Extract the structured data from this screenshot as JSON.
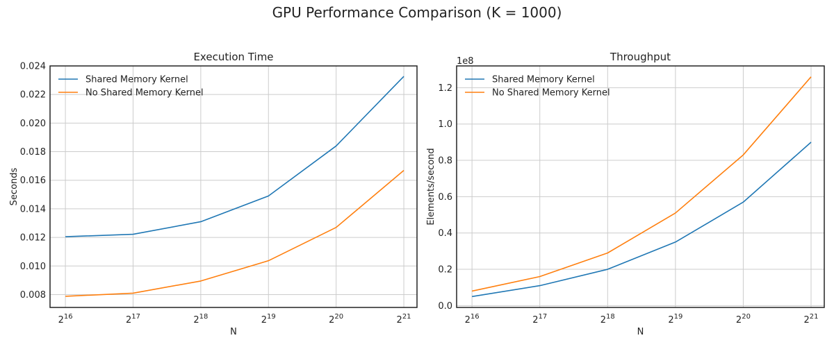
{
  "figure": {
    "title": "GPU Performance Comparison (K = 1000)"
  },
  "chart_data": [
    {
      "type": "line",
      "title": "Execution Time",
      "xlabel": "N",
      "ylabel": "Seconds",
      "x_scale": "log2",
      "x_ticks": [
        65536,
        131072,
        262144,
        524288,
        1048576,
        2097152
      ],
      "x_tick_labels": [
        {
          "base": "2",
          "exp": "16"
        },
        {
          "base": "2",
          "exp": "17"
        },
        {
          "base": "2",
          "exp": "18"
        },
        {
          "base": "2",
          "exp": "19"
        },
        {
          "base": "2",
          "exp": "20"
        },
        {
          "base": "2",
          "exp": "21"
        }
      ],
      "y_ticks": [
        0.008,
        0.01,
        0.012,
        0.014,
        0.016,
        0.018,
        0.02,
        0.022,
        0.024
      ],
      "y_tick_labels": [
        "0.008",
        "0.010",
        "0.012",
        "0.014",
        "0.016",
        "0.018",
        "0.020",
        "0.022",
        "0.024"
      ],
      "xlim": [
        56000,
        2400000
      ],
      "ylim": [
        0.0071,
        0.024
      ],
      "grid": true,
      "legend_position": "upper-left",
      "x": [
        65536,
        131072,
        262144,
        524288,
        1048576,
        2097152
      ],
      "series": [
        {
          "name": "Shared Memory Kernel",
          "color": "#1f77b4",
          "values": [
            0.01205,
            0.01222,
            0.0131,
            0.0149,
            0.0184,
            0.02327
          ]
        },
        {
          "name": "No Shared Memory Kernel",
          "color": "#ff7f0e",
          "values": [
            0.00788,
            0.0081,
            0.00895,
            0.01037,
            0.0127,
            0.01669
          ]
        }
      ]
    },
    {
      "type": "line",
      "title": "Throughput",
      "xlabel": "N",
      "ylabel": "Elements/second",
      "y_offset_label": "1e8",
      "x_scale": "log2",
      "x_ticks": [
        65536,
        131072,
        262144,
        524288,
        1048576,
        2097152
      ],
      "x_tick_labels": [
        {
          "base": "2",
          "exp": "16"
        },
        {
          "base": "2",
          "exp": "17"
        },
        {
          "base": "2",
          "exp": "18"
        },
        {
          "base": "2",
          "exp": "19"
        },
        {
          "base": "2",
          "exp": "20"
        },
        {
          "base": "2",
          "exp": "21"
        }
      ],
      "y_ticks": [
        0.0,
        0.2,
        0.4,
        0.6,
        0.8,
        1.0,
        1.2
      ],
      "y_tick_labels": [
        "0.0",
        "0.2",
        "0.4",
        "0.6",
        "0.8",
        "1.0",
        "1.2"
      ],
      "xlim": [
        56000,
        2400000
      ],
      "ylim": [
        -0.01,
        1.32
      ],
      "grid": true,
      "legend_position": "upper-left",
      "x": [
        65536,
        131072,
        262144,
        524288,
        1048576,
        2097152
      ],
      "series": [
        {
          "name": "Shared Memory Kernel",
          "color": "#1f77b4",
          "values": [
            0.05,
            0.11,
            0.2,
            0.35,
            0.57,
            0.9
          ]
        },
        {
          "name": "No Shared Memory Kernel",
          "color": "#ff7f0e",
          "values": [
            0.08,
            0.16,
            0.29,
            0.51,
            0.83,
            1.26
          ]
        }
      ]
    }
  ]
}
